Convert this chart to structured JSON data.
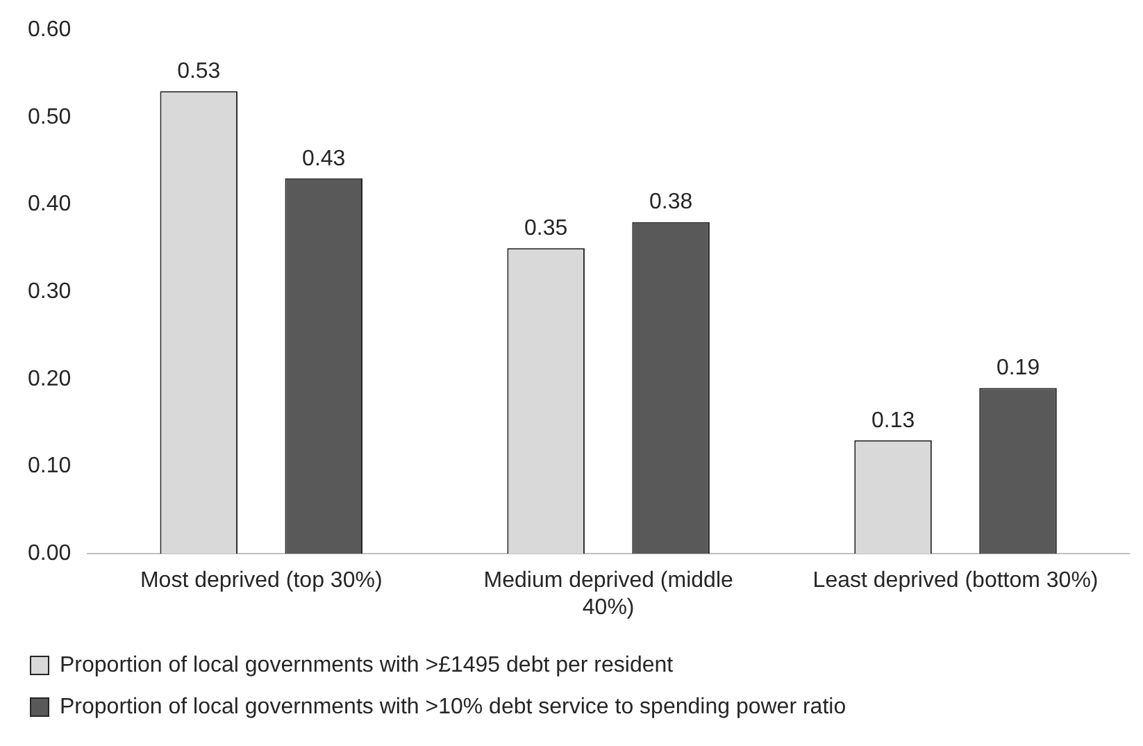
{
  "chart_data": {
    "type": "bar",
    "categories": [
      "Most deprived (top 30%)",
      "Medium deprived (middle 40%)",
      "Least deprived (bottom 30%)"
    ],
    "series": [
      {
        "name": "Proportion of local governments with >£1495 debt per resident",
        "color": "#d9d9d9",
        "values": [
          0.53,
          0.35,
          0.13
        ]
      },
      {
        "name": "Proportion of local governments with >10% debt service to spending power ratio",
        "color": "#595959",
        "values": [
          0.43,
          0.38,
          0.19
        ]
      }
    ],
    "ylim": [
      0,
      0.6
    ],
    "yticks": [
      {
        "value": 0,
        "label": "0.00"
      },
      {
        "value": 0.1,
        "label": "0.10"
      },
      {
        "value": 0.2,
        "label": "0.20"
      },
      {
        "value": 0.3,
        "label": "0.30"
      },
      {
        "value": 0.4,
        "label": "0.40"
      },
      {
        "value": 0.5,
        "label": "0.50"
      },
      {
        "value": 0.6,
        "label": "0.60"
      }
    ],
    "grid": false,
    "legend": "bottom",
    "data_labels": true
  }
}
